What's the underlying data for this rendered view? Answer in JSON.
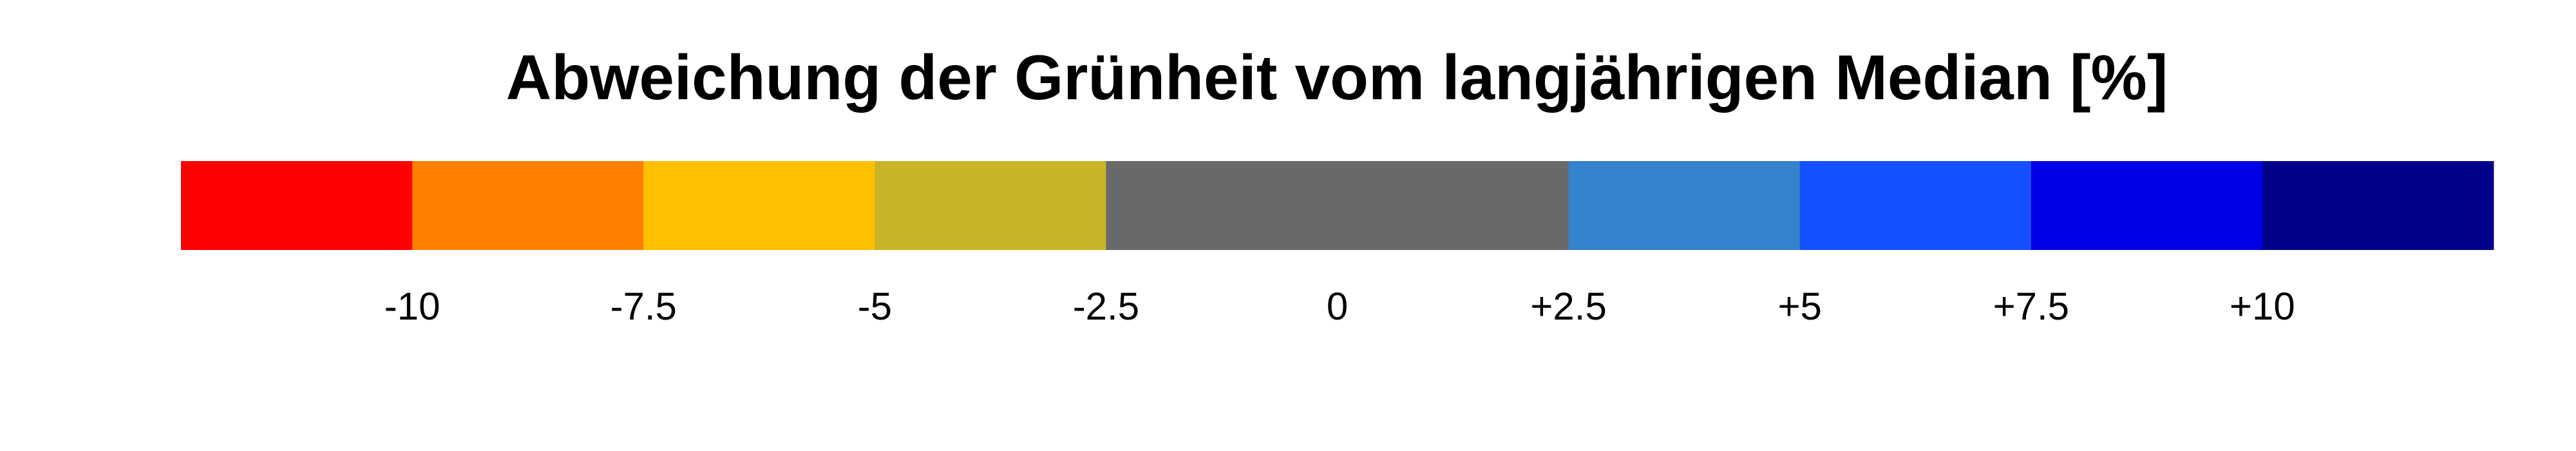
{
  "chart_data": {
    "type": "colorbar",
    "title": "Abweichung der Grünheit vom langjährigen Median [%]",
    "bins": [
      -12.5,
      -10,
      -7.5,
      -5,
      -2.5,
      2.5,
      5,
      7.5,
      10,
      12.5
    ],
    "colors": [
      "#ff0000",
      "#ff8000",
      "#ffc000",
      "#c9b427",
      "#696969",
      "#3483cc",
      "#1450ff",
      "#0000e6",
      "#00008b"
    ],
    "xlim": [
      -12.5,
      12.5
    ],
    "xticks": [
      -10,
      -7.5,
      -5,
      -2.5,
      0,
      {
        "value": 2.5,
        "label": "+2.5"
      },
      {
        "value": 5,
        "label": "+5"
      },
      {
        "value": 7.5,
        "label": "+7.5"
      },
      {
        "value": 10,
        "label": "+10"
      }
    ]
  }
}
